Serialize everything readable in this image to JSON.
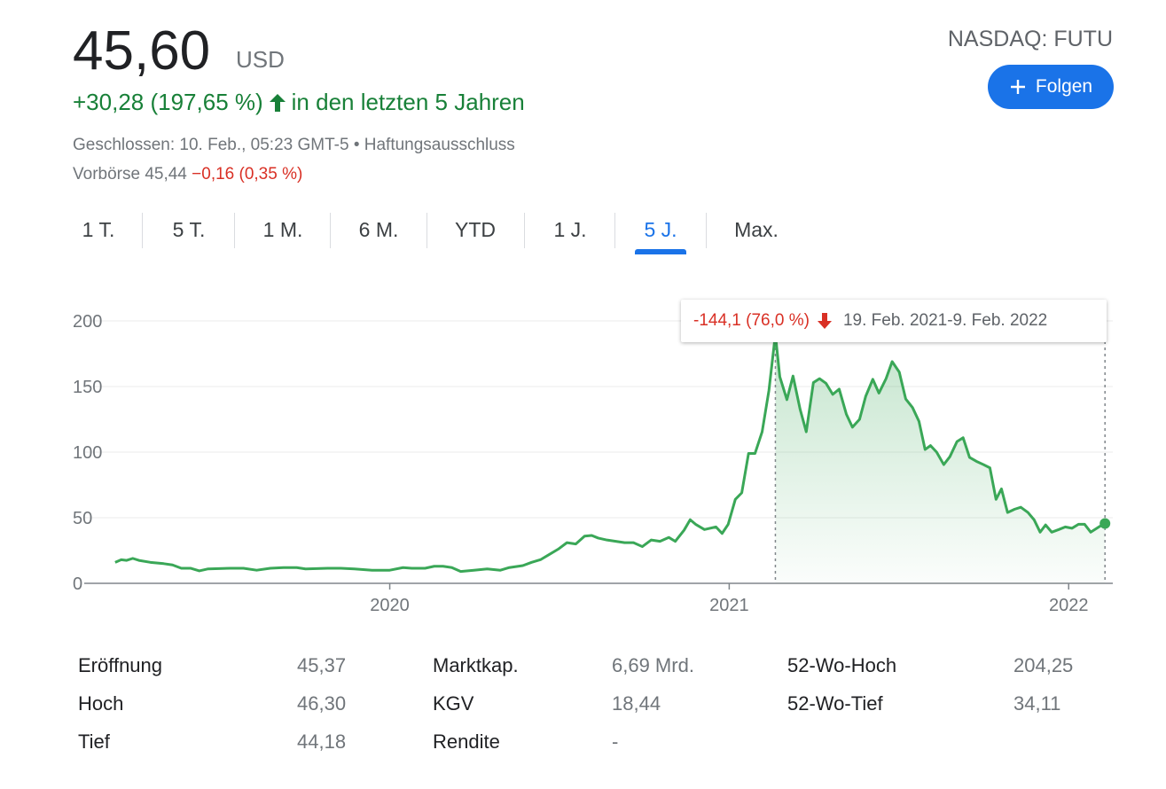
{
  "header": {
    "price": "45,60",
    "currency": "USD",
    "change": "+30,28 (197,65 %)",
    "change_period": "in den letzten 5 Jahren",
    "status_parts": [
      "Geschlossen: 10. Feb., 05:23 GMT-5",
      "•",
      "Haftungsausschluss"
    ],
    "premarket_label": "Vorbörse 45,44",
    "premarket_change": "−0,16 (0,35 %)",
    "exchange": "NASDAQ: FUTU",
    "follow_button": "Folgen"
  },
  "tabs": {
    "items": [
      "1 T.",
      "5 T.",
      "1 M.",
      "6 M.",
      "YTD",
      "1 J.",
      "5 J.",
      "Max."
    ],
    "active": 6
  },
  "chart_data": {
    "type": "line",
    "color": "#3aa757",
    "tooltip": {
      "change": "-144,1 (76,0 %)",
      "range": "19. Feb. 2021-9. Feb. 2022"
    },
    "x": [
      2019.191,
      2019.209,
      2019.225,
      2019.243,
      2019.261,
      2019.295,
      2019.334,
      2019.36,
      2019.386,
      2019.413,
      2019.439,
      2019.465,
      2019.53,
      2019.569,
      2019.608,
      2019.648,
      2019.687,
      2019.726,
      2019.752,
      2019.817,
      2019.856,
      2019.896,
      2019.948,
      2020.0,
      2020.039,
      2020.065,
      2020.104,
      2020.131,
      2020.157,
      2020.183,
      2020.209,
      2020.248,
      2020.287,
      2020.326,
      2020.352,
      2020.392,
      2020.418,
      2020.444,
      2020.47,
      2020.496,
      2020.522,
      2020.548,
      2020.574,
      2020.595,
      2020.614,
      2020.64,
      2020.666,
      2020.692,
      2020.718,
      2020.744,
      2020.77,
      2020.796,
      2020.822,
      2020.841,
      2020.867,
      2020.885,
      2020.901,
      2020.927,
      2020.961,
      2020.979,
      2020.997,
      2021.018,
      2021.037,
      2021.057,
      2021.076,
      2021.097,
      2021.117,
      2021.136,
      2021.149,
      2021.17,
      2021.188,
      2021.209,
      2021.227,
      2021.248,
      2021.266,
      2021.285,
      2021.305,
      2021.324,
      2021.345,
      2021.363,
      2021.384,
      2021.402,
      2021.423,
      2021.441,
      2021.462,
      2021.48,
      2021.501,
      2021.52,
      2021.54,
      2021.559,
      2021.577,
      2021.593,
      2021.611,
      2021.632,
      2021.65,
      2021.671,
      2021.689,
      2021.708,
      2021.728,
      2021.749,
      2021.768,
      2021.786,
      2021.802,
      2021.82,
      2021.841,
      2021.859,
      2021.88,
      2021.898,
      2021.916,
      2021.932,
      2021.95,
      2021.971,
      2021.99,
      2022.01,
      2022.029,
      2022.047,
      2022.065,
      2022.089,
      2022.107
    ],
    "values": [
      16,
      18,
      17.5,
      19,
      17.5,
      16,
      15,
      14,
      11.5,
      11.5,
      9.5,
      11,
      11.5,
      11.5,
      10,
      11.5,
      12,
      12,
      11,
      11.5,
      11.5,
      11,
      10,
      10,
      12,
      11.5,
      11.5,
      13,
      13,
      12,
      9,
      10,
      11,
      10,
      12,
      13.5,
      16,
      18,
      22,
      26,
      31,
      30,
      36,
      36.5,
      34.5,
      33,
      32,
      31,
      31,
      28,
      33,
      32,
      35,
      32,
      40.5,
      48.5,
      45,
      41,
      43,
      38,
      45,
      64,
      69,
      99,
      99,
      115.5,
      147,
      189.7,
      157.5,
      140,
      158,
      132.5,
      115.5,
      153,
      156,
      152.5,
      144,
      148,
      129,
      119,
      125,
      142.5,
      155.5,
      145,
      156,
      169,
      161,
      140.5,
      134,
      123.5,
      102,
      105,
      100,
      90.5,
      96.5,
      108,
      111,
      96,
      93,
      90.5,
      88,
      64,
      72,
      54,
      56.5,
      58,
      54,
      48.5,
      39,
      44.5,
      39,
      41,
      43,
      42,
      45,
      45,
      39,
      43,
      45.6
    ],
    "xlim": [
      2019.1,
      2022.13
    ],
    "xticks": [
      2020,
      2021,
      2022
    ],
    "ylim": [
      0,
      200
    ],
    "yticks": [
      0,
      50,
      100,
      150,
      200
    ],
    "grid": true
  },
  "stats": {
    "rows": [
      [
        "Eröffnung",
        "45,37",
        "Marktkap.",
        "6,69 Mrd.",
        "52-Wo-Hoch",
        "204,25"
      ],
      [
        "Hoch",
        "46,30",
        "KGV",
        "18,44",
        "52-Wo-Tief",
        "34,11"
      ],
      [
        "Tief",
        "44,18",
        "Rendite",
        "-"
      ]
    ]
  }
}
